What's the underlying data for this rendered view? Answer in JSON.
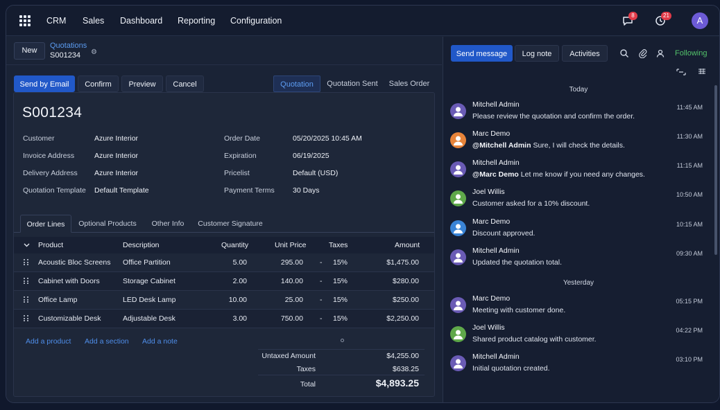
{
  "nav": {
    "apps_icon": "grid-icon",
    "items": [
      "CRM",
      "Sales",
      "Dashboard",
      "Reporting",
      "Configuration"
    ],
    "messages_badge": "8",
    "activities_badge": "21",
    "avatar_initial": "A"
  },
  "control": {
    "new_label": "New",
    "breadcrumb_parent": "Quotations",
    "breadcrumb_current": "S001234"
  },
  "actions": {
    "send_email": "Send by Email",
    "confirm": "Confirm",
    "preview": "Preview",
    "cancel": "Cancel"
  },
  "statusbar": [
    "Quotation",
    "Quotation Sent",
    "Sales Order"
  ],
  "form": {
    "title": "S001234",
    "left_fields": [
      {
        "label": "Customer",
        "value": "Azure Interior"
      },
      {
        "label": "Invoice Address",
        "value": "Azure Interior"
      },
      {
        "label": "Delivery Address",
        "value": "Azure Interior"
      },
      {
        "label": "Quotation Template",
        "value": "Default Template"
      }
    ],
    "right_fields": [
      {
        "label": "Order Date",
        "value": "05/20/2025 10:45 AM"
      },
      {
        "label": "Expiration",
        "value": "06/19/2025"
      },
      {
        "label": "Pricelist",
        "value": "Default (USD)"
      },
      {
        "label": "Payment Terms",
        "value": "30 Days"
      }
    ]
  },
  "tabs": [
    "Order Lines",
    "Optional Products",
    "Other Info",
    "Customer Signature"
  ],
  "table": {
    "headers": [
      "Product",
      "Description",
      "Quantity",
      "Unit Price",
      "Taxes",
      "Amount"
    ],
    "rows": [
      {
        "product": "Acoustic Bloc Screens",
        "description": "Office Partition",
        "quantity": "5.00",
        "unit_price": "295.00",
        "tax_sep": "-",
        "taxes": "15%",
        "amount": "$1,475.00"
      },
      {
        "product": "Cabinet with Doors",
        "description": "Storage Cabinet",
        "quantity": "2.00",
        "unit_price": "140.00",
        "tax_sep": "-",
        "taxes": "15%",
        "amount": "$280.00"
      },
      {
        "product": "Office Lamp",
        "description": "LED Desk Lamp",
        "quantity": "10.00",
        "unit_price": "25.00",
        "tax_sep": "-",
        "taxes": "15%",
        "amount": "$250.00"
      },
      {
        "product": "Customizable Desk",
        "description": "Adjustable Desk",
        "quantity": "3.00",
        "unit_price": "750.00",
        "tax_sep": "-",
        "taxes": "15%",
        "amount": "$2,250.00"
      }
    ],
    "add_links": [
      "Add a product",
      "Add a section",
      "Add a note"
    ]
  },
  "totals": {
    "untaxed_label": "Untaxed Amount",
    "untaxed_value": "$4,255.00",
    "taxes_label": "Taxes",
    "taxes_value": "$638.25",
    "total_label": "Total",
    "total_value": "$4,893.25"
  },
  "chatter": {
    "send_message": "Send message",
    "log_note": "Log note",
    "activities": "Activities",
    "following": "Following",
    "days": [
      "Today",
      "Yesterday"
    ],
    "messages": [
      {
        "author": "Mitchell Admin",
        "mention": "",
        "text": "Please review the quotation and confirm the order.",
        "time": "11:45 AM",
        "avatar_color": "#6a5bb5"
      },
      {
        "author": "Marc Demo",
        "mention": "@Mitchell Admin",
        "text": " Sure, I will check the details.",
        "time": "11:30 AM",
        "avatar_color": "#e8843a"
      },
      {
        "author": "Mitchell Admin",
        "mention": "@Marc Demo",
        "text": " Let me know if you need any changes.",
        "time": "11:15 AM",
        "avatar_color": "#6a5bb5"
      },
      {
        "author": "Joel Willis",
        "mention": "",
        "text": "Customer asked for a 10% discount.",
        "time": "10:50 AM",
        "avatar_color": "#5fa84a"
      },
      {
        "author": "Marc Demo",
        "mention": "",
        "text": "Discount approved.",
        "time": "10:15 AM",
        "avatar_color": "#3a84d6"
      },
      {
        "author": "Mitchell Admin",
        "mention": "",
        "text": "Updated the quotation total.",
        "time": "09:30 AM",
        "avatar_color": "#6a5bb5"
      },
      {
        "author": "Marc Demo",
        "mention": "",
        "text": "Meeting with customer done.",
        "time": "05:15 PM",
        "avatar_color": "#6a5bb5"
      },
      {
        "author": "Joel Willis",
        "mention": "",
        "text": "Shared product catalog with customer.",
        "time": "04:22 PM",
        "avatar_color": "#5fa84a"
      },
      {
        "author": "Mitchell Admin",
        "mention": "",
        "text": "Initial quotation created.",
        "time": "03:10 PM",
        "avatar_color": "#6a5bb5"
      }
    ]
  }
}
